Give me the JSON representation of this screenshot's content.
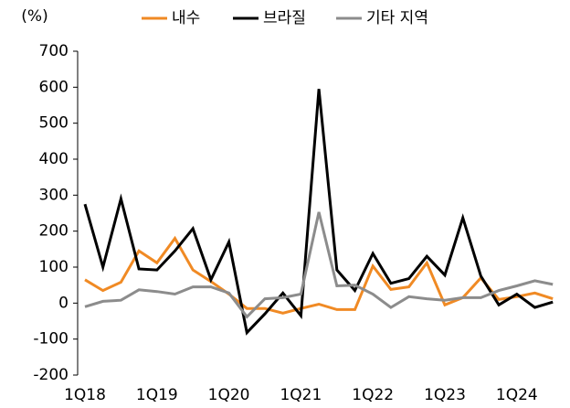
{
  "chart_data": {
    "type": "line",
    "y_label": "(%)",
    "categories": [
      "1Q18",
      null,
      null,
      null,
      "1Q19",
      null,
      null,
      null,
      "1Q20",
      null,
      null,
      null,
      "1Q21",
      null,
      null,
      null,
      "1Q22",
      null,
      null,
      null,
      "1Q23",
      null,
      null,
      null,
      "1Q24",
      null,
      null
    ],
    "series": [
      {
        "name": "내수",
        "color": "#f08a24",
        "values": [
          65,
          35,
          58,
          145,
          112,
          180,
          92,
          60,
          25,
          -15,
          -15,
          -28,
          -15,
          -3,
          -18,
          -18,
          103,
          38,
          45,
          112,
          -5,
          15,
          70,
          10,
          18,
          28,
          12
        ]
      },
      {
        "name": "브라질",
        "color": "#000000",
        "values": [
          275,
          100,
          290,
          95,
          92,
          145,
          207,
          65,
          170,
          -82,
          -30,
          28,
          -35,
          595,
          92,
          35,
          138,
          55,
          68,
          130,
          78,
          237,
          75,
          -5,
          25,
          -12,
          3
        ]
      },
      {
        "name": "기타 지역",
        "color": "#8c8c8c",
        "values": [
          -10,
          5,
          8,
          37,
          32,
          25,
          45,
          45,
          28,
          -38,
          12,
          15,
          25,
          253,
          48,
          50,
          25,
          -12,
          18,
          12,
          8,
          15,
          15,
          35,
          48,
          62,
          52
        ]
      }
    ],
    "ylim": [
      -200,
      700
    ],
    "yticks": [
      -200,
      -100,
      0,
      100,
      200,
      300,
      400,
      500,
      600,
      700
    ],
    "grid": false,
    "legend": "top"
  }
}
